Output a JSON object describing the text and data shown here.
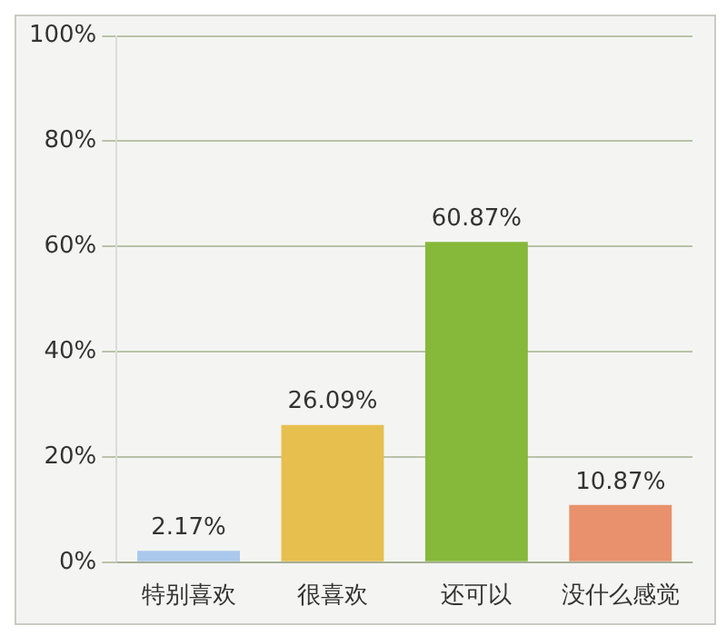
{
  "chart_data": {
    "type": "bar",
    "categories": [
      "特别喜欢",
      "很喜欢",
      "还可以",
      "没什么感觉"
    ],
    "values": [
      2.17,
      26.09,
      60.87,
      10.87
    ],
    "colors": [
      "#a9c8ec",
      "#e6bf4e",
      "#86b83a",
      "#e8916c"
    ],
    "value_labels": [
      "2.17%",
      "26.09%",
      "60.87%",
      "10.87%"
    ],
    "ylim": [
      0,
      100
    ],
    "yticks": [
      {
        "value": 0,
        "label": "0%"
      },
      {
        "value": 20,
        "label": "20%"
      },
      {
        "value": 40,
        "label": "40%"
      },
      {
        "value": 60,
        "label": "60%"
      },
      {
        "value": 80,
        "label": "80%"
      },
      {
        "value": 100,
        "label": "100%"
      }
    ],
    "grid": "y",
    "legend": false
  }
}
